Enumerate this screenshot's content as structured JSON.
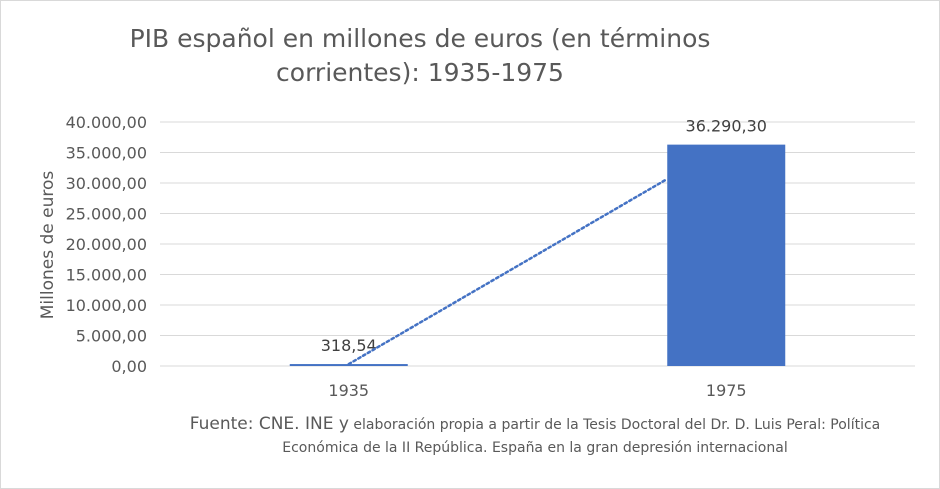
{
  "chart_data": {
    "type": "bar",
    "title_line1": "PIB español en millones de euros (en términos",
    "title_line2": "corrientes): 1935-1975",
    "xlabel": "",
    "ylabel": "Millones de euros",
    "categories": [
      "1935",
      "1975"
    ],
    "values": [
      318.54,
      36290.3
    ],
    "data_labels": [
      "318,54",
      "36.290,30"
    ],
    "ylim": [
      0,
      40000
    ],
    "yticks": [
      "0,00",
      "5.000,00",
      "10.000,00",
      "15.000,00",
      "20.000,00",
      "25.000,00",
      "30.000,00",
      "35.000,00",
      "40.000,00"
    ],
    "trendline": "dotted linear",
    "grid": true,
    "colors": {
      "bar": "#4472c4",
      "trend": "#4472c4",
      "grid": "#d9d9d9"
    }
  },
  "source": {
    "part1": "Fuente: CNE. INE y",
    "part2": " elaboración propia a partir de la Tesis Doctoral del Dr. D. Luis Peral: Política",
    "line2": "Económica de la II República. España en la gran depresión internacional"
  }
}
